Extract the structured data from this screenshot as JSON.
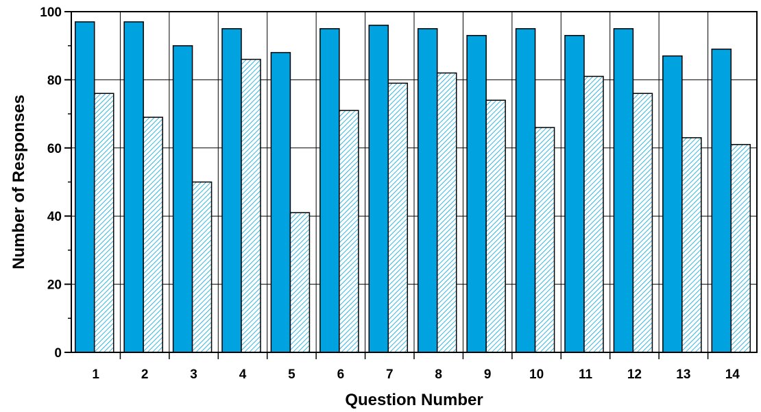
{
  "chart_data": {
    "type": "bar",
    "xlabel": "Question Number",
    "ylabel": "Number of Responses",
    "categories": [
      "1",
      "2",
      "3",
      "4",
      "5",
      "6",
      "7",
      "8",
      "9",
      "10",
      "11",
      "12",
      "13",
      "14"
    ],
    "series": [
      {
        "values": [
          97,
          97,
          90,
          95,
          88,
          95,
          96,
          95,
          93,
          95,
          93,
          95,
          87,
          89
        ],
        "color": "#00a3e0",
        "fill": "solid"
      },
      {
        "values": [
          76,
          69,
          50,
          86,
          41,
          71,
          79,
          82,
          74,
          66,
          81,
          76,
          63,
          61
        ],
        "color": "#00a3e0",
        "fill": "hatched"
      }
    ],
    "ylim": [
      0,
      100
    ],
    "yticks": [
      0,
      20,
      40,
      60,
      80,
      100
    ],
    "ytick_labels": [
      "0",
      "20",
      "40",
      "60",
      "80",
      "100"
    ],
    "grid": true,
    "legend": "none"
  }
}
